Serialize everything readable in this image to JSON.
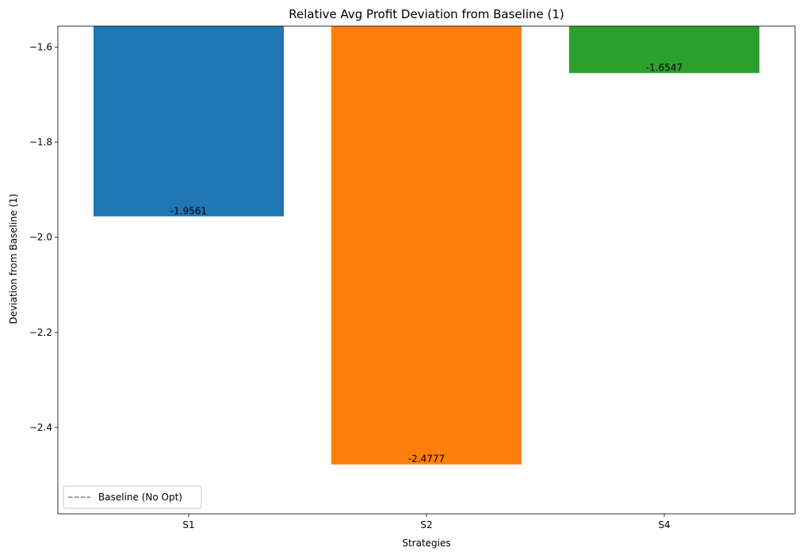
{
  "chart_data": {
    "type": "bar",
    "title": "Relative Avg Profit Deviation from Baseline (1)",
    "xlabel": "Strategies",
    "ylabel": "Deviation from Baseline (1)",
    "categories": [
      "S1",
      "S2",
      "S4"
    ],
    "values": [
      -1.9561,
      -2.4777,
      -1.6547
    ],
    "value_labels": [
      "-1.9561",
      "-2.4777",
      "-1.6547"
    ],
    "colors": [
      "#1f77b4",
      "#ff7f0e",
      "#2ca02c"
    ],
    "ylim": [
      -2.5815,
      -1.556
    ],
    "yticks": [
      -2.4,
      -2.2,
      -2.0,
      -1.8,
      -1.6
    ],
    "ytick_labels": [
      "−2.4",
      "−2.2",
      "−2.0",
      "−1.8",
      "−1.6"
    ],
    "grid": false,
    "legend": {
      "placement": "lower-left",
      "entries": [
        {
          "label": "Baseline (No Opt)",
          "color": "#808080",
          "style": "dashed"
        }
      ]
    }
  }
}
